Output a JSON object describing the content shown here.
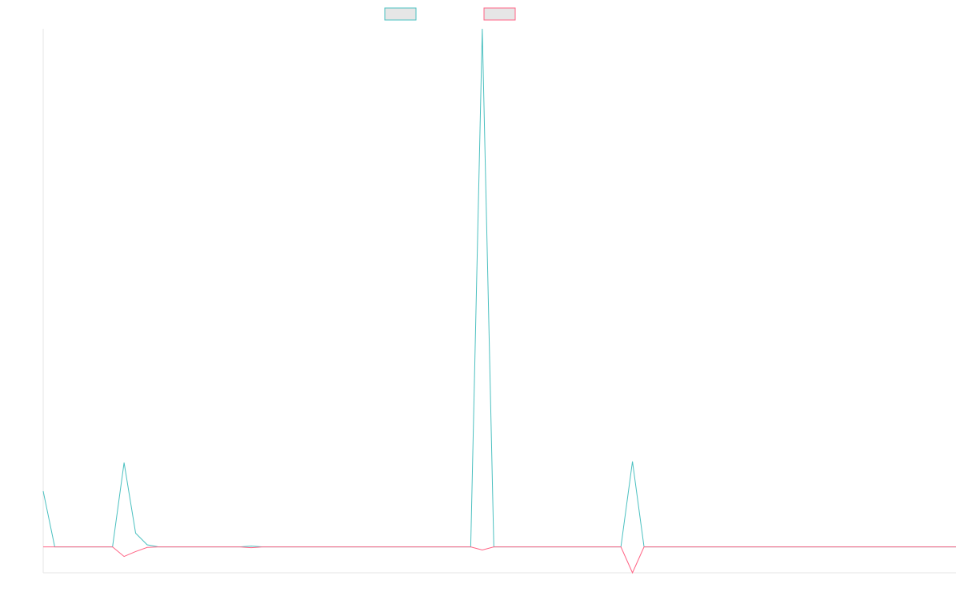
{
  "chart_data": {
    "type": "line",
    "title": "",
    "xlabel": "",
    "ylabel": "",
    "legend": {
      "position": "top-center"
    },
    "grid": false,
    "ylim": [
      -10,
      200
    ],
    "x": [
      0,
      1,
      2,
      3,
      4,
      5,
      6,
      7,
      8,
      9,
      10,
      11,
      12,
      13,
      14,
      15,
      16,
      17,
      18,
      19,
      20,
      21,
      22,
      23,
      24,
      25,
      26,
      27,
      28,
      29,
      30,
      31,
      32,
      33,
      34,
      35,
      36,
      37,
      38,
      39,
      40,
      41,
      42,
      43,
      44,
      45,
      46,
      47,
      48,
      49,
      50,
      51,
      52,
      53,
      54,
      55,
      56,
      57,
      58,
      59,
      60,
      61,
      62,
      63,
      64,
      65,
      66,
      67,
      68,
      69,
      70,
      71,
      72,
      73,
      74,
      75,
      76,
      77,
      78,
      79
    ],
    "series": [
      {
        "color": "#4bc0c0",
        "values": [
          21.5,
          0,
          0,
          0,
          0,
          0,
          0,
          32.5,
          5.3,
          0.8,
          0,
          0,
          0,
          0,
          0,
          0,
          0,
          0,
          0.3,
          0,
          0,
          0,
          0,
          0,
          0,
          0,
          0,
          0,
          0,
          0,
          0,
          0,
          0,
          0,
          0,
          0,
          0,
          0,
          200,
          0,
          0,
          0,
          0,
          0,
          0,
          0,
          0,
          0,
          0,
          0,
          0,
          33,
          0,
          0,
          0,
          0,
          0,
          0,
          0,
          0,
          0,
          0,
          0,
          0,
          0,
          0,
          0,
          0,
          0,
          0,
          0,
          0,
          0,
          0,
          0,
          0,
          0,
          0,
          0,
          0
        ]
      },
      {
        "color": "#ff6384",
        "values": [
          0,
          0,
          0,
          0,
          0,
          0,
          0,
          -3.7,
          -1.8,
          -0.2,
          0,
          0,
          0,
          0,
          0,
          0,
          0,
          0,
          -0.3,
          0,
          0,
          0,
          0,
          0,
          0,
          0,
          0,
          0,
          0,
          0,
          0,
          0,
          0,
          0,
          0,
          0,
          0,
          0,
          -1.2,
          0,
          0,
          0,
          0,
          0,
          0,
          0,
          0,
          0,
          0,
          0,
          0,
          -10,
          0,
          0,
          0,
          0,
          0,
          0,
          0,
          0,
          0,
          0,
          0,
          0,
          0,
          0,
          0,
          0,
          0,
          0,
          0,
          0,
          0,
          0,
          0,
          0,
          0,
          0,
          0,
          0
        ]
      }
    ]
  }
}
